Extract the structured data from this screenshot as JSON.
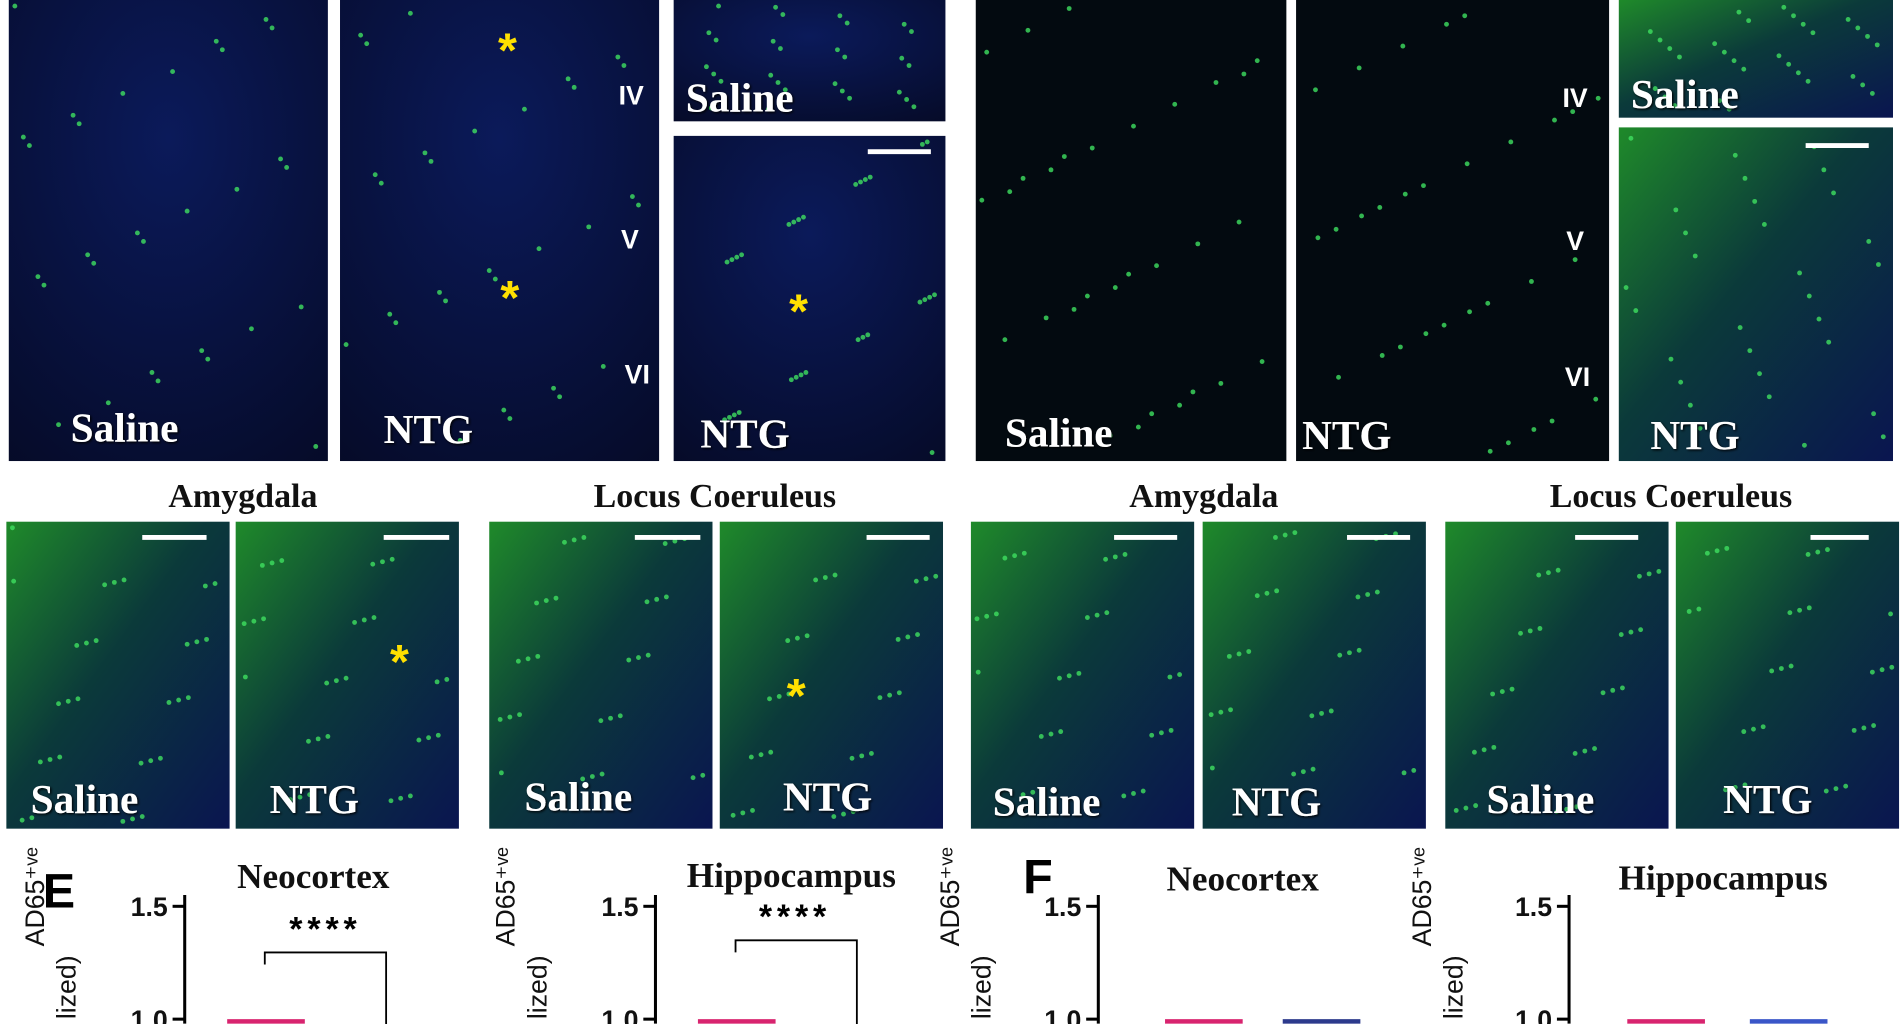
{
  "top_panels": [
    {
      "label": "Saline"
    },
    {
      "label": "NTG",
      "annotations": [
        "*",
        "*"
      ],
      "layers": [
        "IV",
        "V",
        "VI"
      ]
    },
    {
      "label": "Saline"
    },
    {
      "label": "NTG",
      "annotations": [
        "*"
      ]
    },
    {
      "label": "Saline"
    },
    {
      "label": "NTG",
      "layers": [
        "IV",
        "V",
        "VI"
      ]
    },
    {
      "label": "Saline"
    },
    {
      "label": "NTG"
    }
  ],
  "region_titles": [
    "Amygdala",
    "Locus Coeruleus",
    "Amygdala",
    "Locus Coeruleus"
  ],
  "middle_panels": [
    {
      "label": "Saline"
    },
    {
      "label": "NTG",
      "annotations": [
        "*"
      ]
    },
    {
      "label": "Saline"
    },
    {
      "label": "NTG",
      "annotations": [
        "*"
      ]
    },
    {
      "label": "Saline"
    },
    {
      "label": "NTG"
    },
    {
      "label": "Saline"
    },
    {
      "label": "NTG"
    }
  ],
  "panel_letters": [
    "E",
    "F"
  ],
  "y_label_parts": [
    "AD65⁺ᵛᵉ",
    "lized)"
  ],
  "chart_data": [
    {
      "type": "bar",
      "title": "Neocortex",
      "values": [
        1
      ],
      "colors": [
        "#d8246f"
      ],
      "ylim": [
        0.98,
        1.55
      ],
      "yticks": [
        {
          "value": 1,
          "label": "1.0"
        },
        1.5
      ],
      "significance": "****"
    },
    {
      "type": "bar",
      "title": "Hippocampus",
      "values": [
        1
      ],
      "colors": [
        "#d8246f"
      ],
      "ylim": [
        0.98,
        1.55
      ],
      "yticks": [
        {
          "value": 1,
          "label": "1.0"
        },
        1.5
      ],
      "significance": "****"
    },
    {
      "type": "bar",
      "title": "Neocortex",
      "values": [
        1,
        1
      ],
      "colors": [
        "#d8246f",
        "#2c3a8c"
      ],
      "ylim": [
        0.98,
        1.55
      ],
      "yticks": [
        {
          "value": 1,
          "label": "1.0"
        },
        1.5
      ]
    },
    {
      "type": "bar",
      "title": "Hippocampus",
      "values": [
        1,
        1
      ],
      "colors": [
        "#d8246f",
        "#3a56c8"
      ],
      "ylim": [
        0.98,
        1.55
      ],
      "yticks": [
        {
          "value": 1,
          "label": "1.0"
        },
        1.5
      ]
    }
  ]
}
